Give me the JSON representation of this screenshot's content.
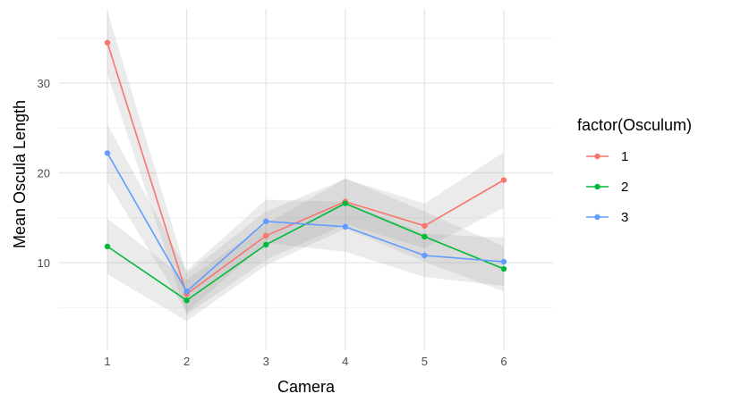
{
  "chart_data": {
    "type": "line",
    "xlabel": "Camera",
    "ylabel": "Mean Oscula Length",
    "x": [
      1,
      2,
      3,
      4,
      5,
      6
    ],
    "x_tick_labels": [
      "1",
      "2",
      "3",
      "4",
      "5",
      "6"
    ],
    "ylim": [
      1,
      38
    ],
    "y_ticks": [
      10,
      20,
      30
    ],
    "y_tick_labels": [
      "10",
      "20",
      "30"
    ],
    "grid": true,
    "legend": {
      "title": "factor(Osculum)",
      "placement": "right"
    },
    "series": [
      {
        "name": "1",
        "color": "#F8766D",
        "values": [
          34.5,
          6.5,
          13.0,
          16.8,
          14.1,
          19.2
        ],
        "ci_low": [
          31.0,
          4.2,
          10.3,
          14.3,
          11.6,
          16.1
        ],
        "ci_high": [
          38.0,
          8.8,
          15.7,
          19.3,
          16.6,
          22.3
        ]
      },
      {
        "name": "2",
        "color": "#00BA38",
        "values": [
          11.8,
          5.8,
          12.0,
          16.6,
          12.9,
          9.3
        ],
        "ci_low": [
          8.7,
          3.5,
          9.7,
          13.8,
          10.1,
          6.8
        ],
        "ci_high": [
          14.9,
          8.1,
          14.3,
          19.4,
          15.7,
          11.8
        ]
      },
      {
        "name": "3",
        "color": "#619CFF",
        "values": [
          22.2,
          6.8,
          14.6,
          14.0,
          10.8,
          10.1
        ],
        "ci_low": [
          19.0,
          4.5,
          12.2,
          11.2,
          8.4,
          7.4
        ],
        "ci_high": [
          25.4,
          9.1,
          17.0,
          16.8,
          13.2,
          12.8
        ]
      }
    ]
  }
}
